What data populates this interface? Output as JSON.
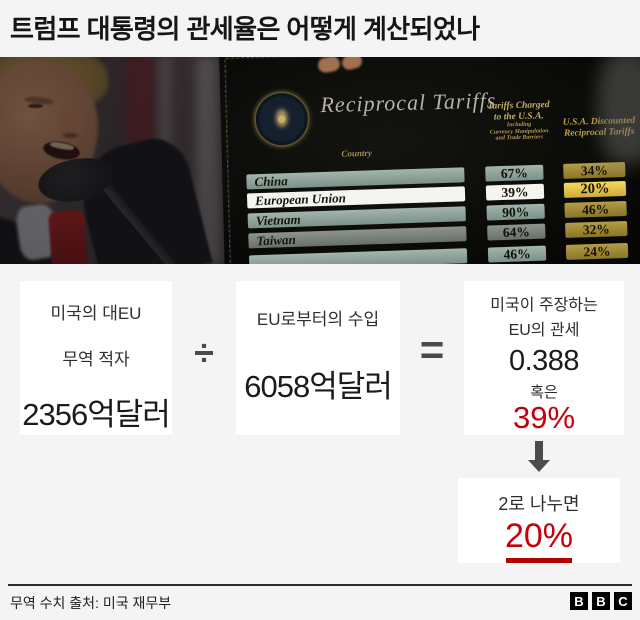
{
  "title": "트럼프 대통령의 관세율은 어떻게 계산되었나",
  "photo": {
    "board": {
      "title": "Reciprocal Tariffs",
      "columns": {
        "country": "Country",
        "charged1": "Tariffs Charged",
        "charged2": "to the U.S.A.",
        "charged_sub1": "Including",
        "charged_sub2": "Currency Manipulation",
        "charged_sub3": "and Trade Barriers",
        "discounted1": "U.S.A. Discounted",
        "discounted2": "Reciprocal Tariffs"
      },
      "rows": [
        {
          "country": "China",
          "charged": "67%",
          "discounted": "34%",
          "highlight": false
        },
        {
          "country": "European Union",
          "charged": "39%",
          "discounted": "20%",
          "highlight": true
        },
        {
          "country": "Vietnam",
          "charged": "90%",
          "discounted": "46%",
          "highlight": false
        },
        {
          "country": "Taiwan",
          "charged": "64%",
          "discounted": "32%",
          "highlight": false
        },
        {
          "country": "",
          "charged": "46%",
          "discounted": "24%",
          "highlight": false
        }
      ]
    }
  },
  "calculation": {
    "box1": {
      "label1": "미국의 대EU",
      "label2": "무역 적자",
      "value": "2356억달러"
    },
    "divide_sign": "÷",
    "box2": {
      "label": "EU로부터의 수입",
      "value": "6058억달러"
    },
    "equals_sign": "=",
    "box3": {
      "label1": "미국이 주장하는",
      "label2": "EU의 관세",
      "value": "0.388",
      "or_word": "혹은",
      "percent": "39%"
    },
    "box4": {
      "label": "2로 나누면",
      "percent": "20%"
    }
  },
  "footer": {
    "source": "무역 수치 출처: 미국 재무부",
    "logo": [
      "B",
      "B",
      "C"
    ]
  },
  "colors": {
    "accent_red": "#c3000c",
    "underline_red": "#b30000",
    "chip_sage": "#8ba39b",
    "chip_gold": "#a0892f",
    "chip_yellow_highlight": "#eed253",
    "highlight_white": "#f6f4ee",
    "page_bg": "#f4f4f5"
  }
}
